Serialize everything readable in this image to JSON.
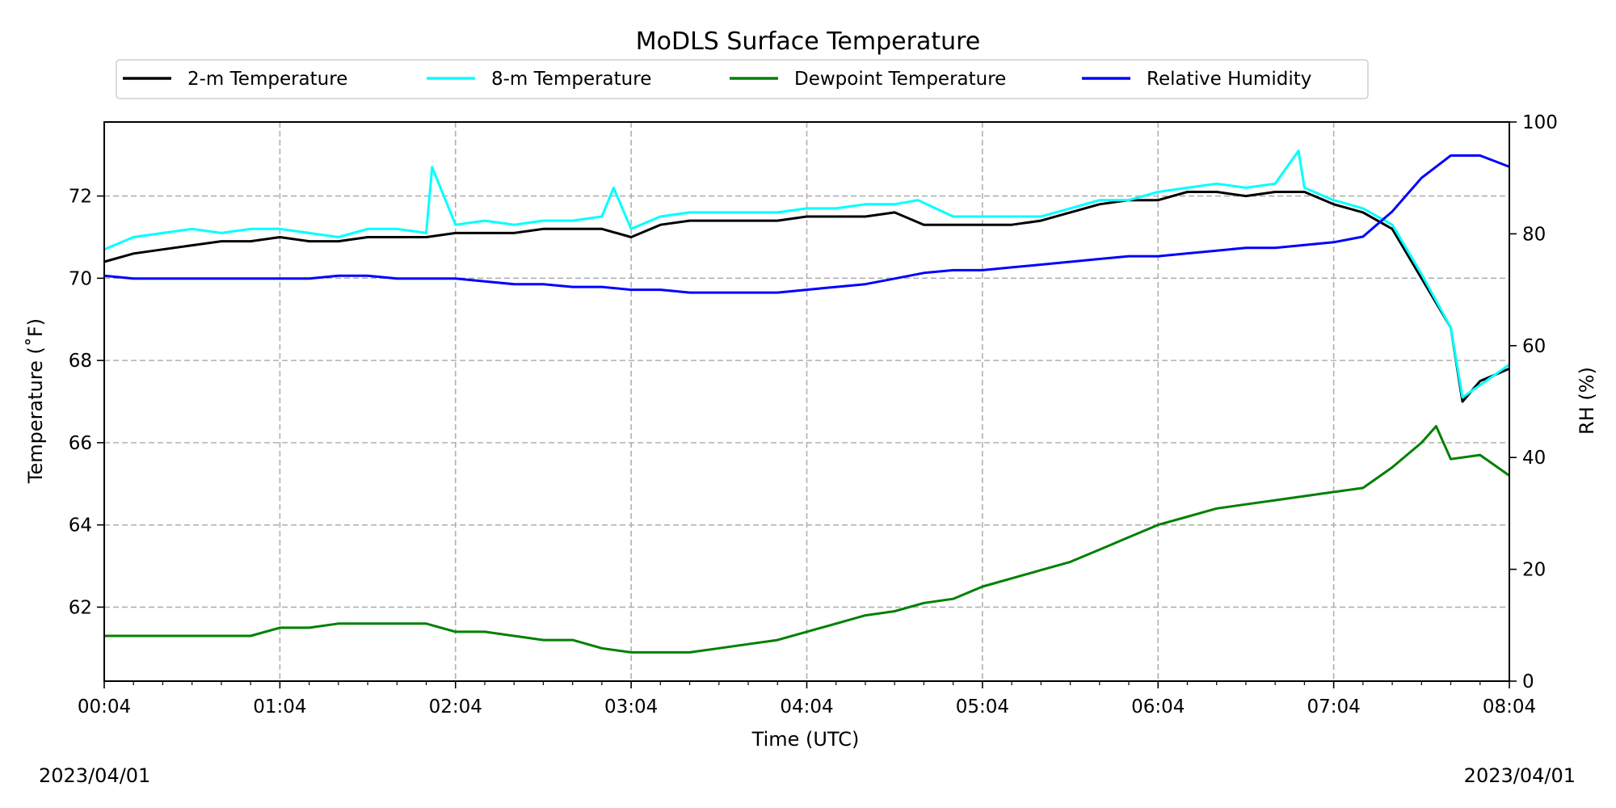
{
  "chart_data": {
    "type": "line",
    "title": "MoDLS Surface Temperature",
    "xlabel": "Time (UTC)",
    "ylabel": "Temperature ($^\\circ$F)",
    "ylabel_display": "Temperature (˚F)",
    "y2label": "RH (%)",
    "date_left": "2023/04/01",
    "date_right": "2023/04/01",
    "xlim": [
      "00:04",
      "08:04"
    ],
    "ylim": [
      60.2,
      73.8
    ],
    "y2lim": [
      0,
      100
    ],
    "x_ticks": [
      "00:04",
      "01:04",
      "02:04",
      "03:04",
      "04:04",
      "05:04",
      "06:04",
      "07:04",
      "08:04"
    ],
    "y_ticks": [
      62,
      64,
      66,
      68,
      70,
      72
    ],
    "y2_ticks": [
      0,
      20,
      40,
      60,
      80,
      100
    ],
    "grid": true,
    "legend_position": "top-center",
    "series": [
      {
        "name": "2-m Temperature",
        "color": "#000000",
        "axis": "left",
        "x": [
          "00:04",
          "00:14",
          "00:24",
          "00:34",
          "00:44",
          "00:54",
          "01:04",
          "01:14",
          "01:24",
          "01:34",
          "01:44",
          "01:54",
          "02:04",
          "02:14",
          "02:24",
          "02:34",
          "02:44",
          "02:54",
          "03:04",
          "03:14",
          "03:24",
          "03:34",
          "03:44",
          "03:54",
          "04:04",
          "04:14",
          "04:24",
          "04:34",
          "04:44",
          "04:54",
          "05:04",
          "05:14",
          "05:24",
          "05:34",
          "05:44",
          "05:54",
          "06:04",
          "06:14",
          "06:24",
          "06:34",
          "06:44",
          "06:54",
          "07:04",
          "07:14",
          "07:24",
          "07:34",
          "07:44",
          "07:48",
          "07:54",
          "08:04"
        ],
        "y": [
          70.4,
          70.6,
          70.7,
          70.8,
          70.9,
          70.9,
          71.0,
          70.9,
          70.9,
          71.0,
          71.0,
          71.0,
          71.1,
          71.1,
          71.1,
          71.2,
          71.2,
          71.2,
          71.0,
          71.3,
          71.4,
          71.4,
          71.4,
          71.4,
          71.5,
          71.5,
          71.5,
          71.6,
          71.3,
          71.3,
          71.3,
          71.3,
          71.4,
          71.6,
          71.8,
          71.9,
          71.9,
          72.1,
          72.1,
          72.0,
          72.1,
          72.1,
          71.8,
          71.6,
          71.2,
          70.0,
          68.8,
          67.0,
          67.5,
          67.8
        ]
      },
      {
        "name": "8-m Temperature",
        "color": "#00ffff",
        "axis": "left",
        "x": [
          "00:04",
          "00:14",
          "00:24",
          "00:34",
          "00:44",
          "00:54",
          "01:04",
          "01:14",
          "01:24",
          "01:34",
          "01:44",
          "01:54",
          "01:56",
          "02:04",
          "02:14",
          "02:24",
          "02:34",
          "02:44",
          "02:54",
          "02:58",
          "03:04",
          "03:14",
          "03:24",
          "03:34",
          "03:44",
          "03:54",
          "04:04",
          "04:14",
          "04:24",
          "04:34",
          "04:42",
          "04:54",
          "05:04",
          "05:14",
          "05:24",
          "05:34",
          "05:44",
          "05:54",
          "06:04",
          "06:14",
          "06:24",
          "06:34",
          "06:44",
          "06:52",
          "06:54",
          "07:04",
          "07:14",
          "07:24",
          "07:34",
          "07:44",
          "07:48",
          "07:54",
          "08:04"
        ],
        "y": [
          70.7,
          71.0,
          71.1,
          71.2,
          71.1,
          71.2,
          71.2,
          71.1,
          71.0,
          71.2,
          71.2,
          71.1,
          72.7,
          71.3,
          71.4,
          71.3,
          71.4,
          71.4,
          71.5,
          72.2,
          71.2,
          71.5,
          71.6,
          71.6,
          71.6,
          71.6,
          71.7,
          71.7,
          71.8,
          71.8,
          71.9,
          71.5,
          71.5,
          71.5,
          71.5,
          71.7,
          71.9,
          71.9,
          72.1,
          72.2,
          72.3,
          72.2,
          72.3,
          73.1,
          72.2,
          71.9,
          71.7,
          71.3,
          70.1,
          68.8,
          67.1,
          67.4,
          67.9
        ]
      },
      {
        "name": "Dewpoint Temperature",
        "color": "#008000",
        "axis": "left",
        "x": [
          "00:04",
          "00:14",
          "00:24",
          "00:34",
          "00:44",
          "00:54",
          "01:04",
          "01:14",
          "01:24",
          "01:34",
          "01:44",
          "01:54",
          "02:04",
          "02:14",
          "02:24",
          "02:34",
          "02:44",
          "02:54",
          "03:04",
          "03:14",
          "03:24",
          "03:34",
          "03:44",
          "03:54",
          "04:04",
          "04:14",
          "04:24",
          "04:34",
          "04:44",
          "04:54",
          "05:04",
          "05:14",
          "05:24",
          "05:34",
          "05:44",
          "05:54",
          "06:04",
          "06:14",
          "06:24",
          "06:34",
          "06:44",
          "06:54",
          "07:04",
          "07:14",
          "07:24",
          "07:34",
          "07:39",
          "07:44",
          "07:54",
          "08:04"
        ],
        "y": [
          61.3,
          61.3,
          61.3,
          61.3,
          61.3,
          61.3,
          61.5,
          61.5,
          61.6,
          61.6,
          61.6,
          61.6,
          61.4,
          61.4,
          61.3,
          61.2,
          61.2,
          61.0,
          60.9,
          60.9,
          60.9,
          61.0,
          61.1,
          61.2,
          61.4,
          61.6,
          61.8,
          61.9,
          62.1,
          62.2,
          62.5,
          62.7,
          62.9,
          63.1,
          63.4,
          63.7,
          64.0,
          64.2,
          64.4,
          64.5,
          64.6,
          64.7,
          64.8,
          64.9,
          65.4,
          66.0,
          66.4,
          65.6,
          65.7,
          65.2
        ]
      },
      {
        "name": "Relative Humidity",
        "color": "#0000ff",
        "axis": "right",
        "x": [
          "00:04",
          "00:14",
          "00:24",
          "00:34",
          "00:44",
          "00:54",
          "01:04",
          "01:14",
          "01:24",
          "01:34",
          "01:44",
          "01:54",
          "02:04",
          "02:14",
          "02:24",
          "02:34",
          "02:44",
          "02:54",
          "03:04",
          "03:14",
          "03:24",
          "03:34",
          "03:44",
          "03:54",
          "04:04",
          "04:14",
          "04:24",
          "04:34",
          "04:44",
          "04:54",
          "05:04",
          "05:14",
          "05:24",
          "05:34",
          "05:44",
          "05:54",
          "06:04",
          "06:14",
          "06:24",
          "06:34",
          "06:44",
          "06:54",
          "07:04",
          "07:14",
          "07:24",
          "07:34",
          "07:44",
          "07:54",
          "08:04"
        ],
        "y": [
          72.5,
          72.0,
          72.0,
          72.0,
          72.0,
          72.0,
          72.0,
          72.0,
          72.5,
          72.5,
          72.0,
          72.0,
          72.0,
          71.5,
          71.0,
          71.0,
          70.5,
          70.5,
          70.0,
          70.0,
          69.5,
          69.5,
          69.5,
          69.5,
          70.0,
          70.5,
          71.0,
          72.0,
          73.0,
          73.5,
          73.5,
          74.0,
          74.5,
          75.0,
          75.5,
          76.0,
          76.0,
          76.5,
          77.0,
          77.5,
          77.5,
          78.0,
          78.5,
          79.5,
          84.0,
          90.0,
          94.0,
          94.0,
          92.0
        ]
      }
    ]
  }
}
